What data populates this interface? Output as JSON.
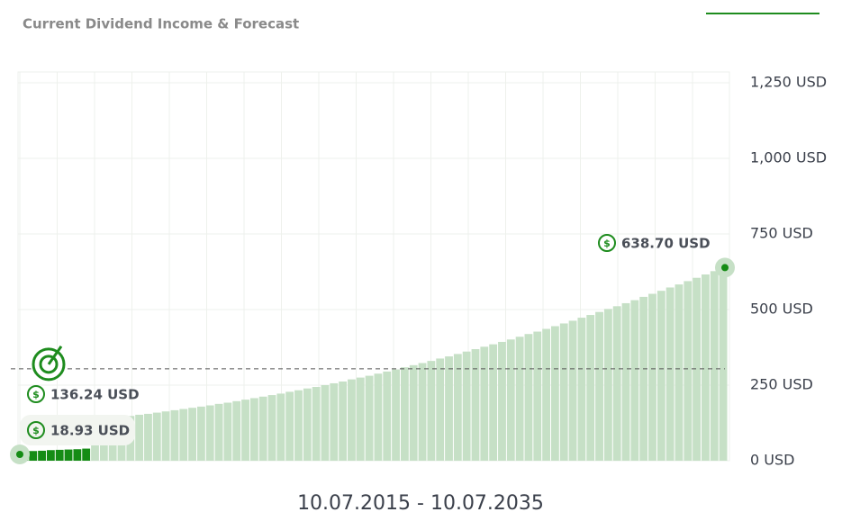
{
  "chart_data": {
    "type": "bar",
    "title": "Current Dividend Income & Forecast",
    "x_label": "10.07.2015 - 10.07.2035",
    "series": [
      {
        "color": "#158c15",
        "values": [
          30,
          32,
          33,
          35,
          36,
          37,
          38,
          40,
          null,
          null,
          null,
          null,
          null,
          null,
          null,
          null,
          null,
          null,
          null,
          null,
          null,
          null,
          null,
          null,
          null,
          null,
          null,
          null,
          null,
          null,
          null,
          null,
          null,
          null,
          null,
          null,
          null,
          null,
          null,
          null,
          null,
          null,
          null,
          null,
          null,
          null,
          null,
          null,
          null,
          null,
          null,
          null,
          null,
          null,
          null,
          null,
          null,
          null,
          null,
          null,
          null,
          null,
          null,
          null,
          null,
          null,
          null,
          null,
          null,
          null,
          null,
          null,
          null,
          null,
          null,
          null,
          null,
          null,
          null,
          null
        ]
      },
      {
        "color": "#c6e0c6",
        "values": [
          null,
          null,
          null,
          null,
          null,
          null,
          null,
          null,
          136.24,
          139,
          142,
          145,
          148,
          152,
          155,
          159,
          163,
          167,
          171,
          175,
          179,
          183,
          188,
          192,
          197,
          202,
          207,
          212,
          217,
          222,
          228,
          233,
          239,
          244,
          250,
          256,
          262,
          269,
          275,
          281,
          288,
          295,
          302,
          309,
          316,
          323,
          330,
          338,
          345,
          353,
          361,
          369,
          377,
          385,
          393,
          401,
          410,
          419,
          427,
          436,
          445,
          454,
          463,
          473,
          482,
          492,
          502,
          511,
          521,
          531,
          542,
          552,
          562,
          573,
          583,
          594,
          605,
          616,
          627,
          638.7
        ]
      }
    ],
    "ylim": [
      0,
      1250
    ],
    "yticks": [
      {
        "value": 0,
        "label": "0 USD"
      },
      {
        "value": 250,
        "label": "250 USD"
      },
      {
        "value": 500,
        "label": "500 USD"
      },
      {
        "value": 750,
        "label": "750 USD"
      },
      {
        "value": 1000,
        "label": "1,000 USD"
      },
      {
        "value": 1250,
        "label": "1,250 USD"
      }
    ],
    "grid": true,
    "target_line": 304,
    "annotations": [
      {
        "value": 18.93,
        "label": "18.93 USD"
      },
      {
        "value": 136.24,
        "label": "136.24 USD"
      },
      {
        "value": 638.7,
        "label": "638.70 USD"
      }
    ]
  }
}
